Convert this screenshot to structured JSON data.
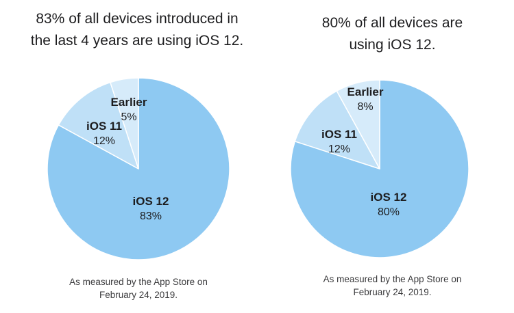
{
  "colors": {
    "ios12": "#8ec9f2",
    "ios11": "#bfe0f7",
    "earlier": "#d6ebfa",
    "separator": "#ffffff"
  },
  "chart_data": [
    {
      "type": "pie",
      "title": "83% of all devices introduced in the last 4 years are using iOS 12.",
      "title_lines": [
        "83% of all devices introduced in",
        "the last 4 years are using iOS 12."
      ],
      "slices": [
        {
          "label": "iOS 12",
          "value": 83,
          "value_label": "83%"
        },
        {
          "label": "iOS 11",
          "value": 12,
          "value_label": "12%"
        },
        {
          "label": "Earlier",
          "value": 5,
          "value_label": "5%"
        }
      ],
      "footnote_lines": [
        "As measured by the App Store on",
        "February 24, 2019."
      ]
    },
    {
      "type": "pie",
      "title": "80% of all devices are using iOS 12.",
      "title_lines": [
        "80% of all devices are",
        "using iOS 12."
      ],
      "slices": [
        {
          "label": "iOS 12",
          "value": 80,
          "value_label": "80%"
        },
        {
          "label": "iOS 11",
          "value": 12,
          "value_label": "12%"
        },
        {
          "label": "Earlier",
          "value": 8,
          "value_label": "8%"
        }
      ],
      "footnote_lines": [
        "As measured by the App Store on",
        "February 24, 2019."
      ]
    }
  ]
}
